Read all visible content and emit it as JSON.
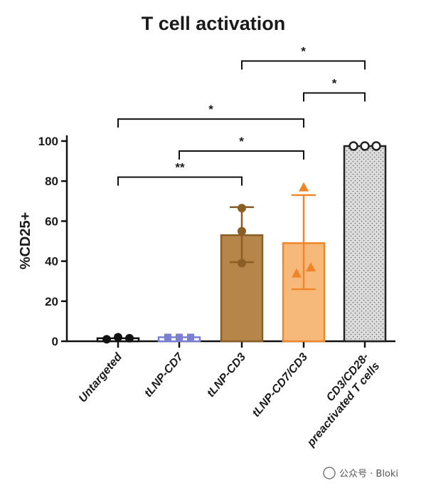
{
  "chart_data": {
    "type": "bar",
    "title": "T cell activation",
    "xlabel": "",
    "ylabel": "%CD25+",
    "ylim": [
      0,
      100
    ],
    "yticks": [
      0,
      20,
      40,
      60,
      80,
      100
    ],
    "categories": [
      "Untargeted",
      "tLNP-CD7",
      "tLNP-CD3",
      "tLNP-CD7/CD3",
      "CD3/CD28-\npreactivated T cells"
    ],
    "values": [
      1.5,
      2,
      53,
      49,
      97.5
    ],
    "errors": [
      {
        "low": 1.5,
        "high": 1.5
      },
      {
        "low": 2,
        "high": 2
      },
      {
        "low": 39.5,
        "high": 67
      },
      {
        "low": 26,
        "high": 73
      },
      {
        "low": 97,
        "high": 98
      }
    ],
    "points": [
      [
        1,
        2,
        1.5
      ],
      [
        2,
        2,
        2
      ],
      [
        66.5,
        55,
        39
      ],
      [
        77,
        37,
        34
      ],
      [
        97.5,
        97.5,
        97.5
      ]
    ],
    "styles": [
      {
        "fill": "#ffffff",
        "stroke": "#111111",
        "marker": "circle",
        "pointColor": "#111111"
      },
      {
        "fill": "#ffffff",
        "stroke": "#7b7fd4",
        "marker": "square",
        "pointColor": "#7b7fd4"
      },
      {
        "fill": "#b5854a",
        "stroke": "#8a5e25",
        "marker": "circle",
        "pointColor": "#8a5e25"
      },
      {
        "fill": "#f7b97a",
        "stroke": "#f0872a",
        "marker": "triangle",
        "pointColor": "#f08428"
      },
      {
        "fill": "#d9d9d9",
        "stroke": "#222222",
        "marker": "circle-open",
        "pointColor": "#222222",
        "pattern": "dots"
      }
    ],
    "significance": [
      {
        "from": 0,
        "to": 2,
        "level": 82,
        "label": "**"
      },
      {
        "from": 1,
        "to": 3,
        "level": 95,
        "label": "*"
      },
      {
        "from": 0,
        "to": 3,
        "level": 111,
        "label": "*"
      },
      {
        "from": 3,
        "to": 4,
        "level": 124,
        "label": "*"
      },
      {
        "from": 2,
        "to": 4,
        "level": 140,
        "label": "*"
      }
    ]
  },
  "watermark": "公众号 · Bloki"
}
